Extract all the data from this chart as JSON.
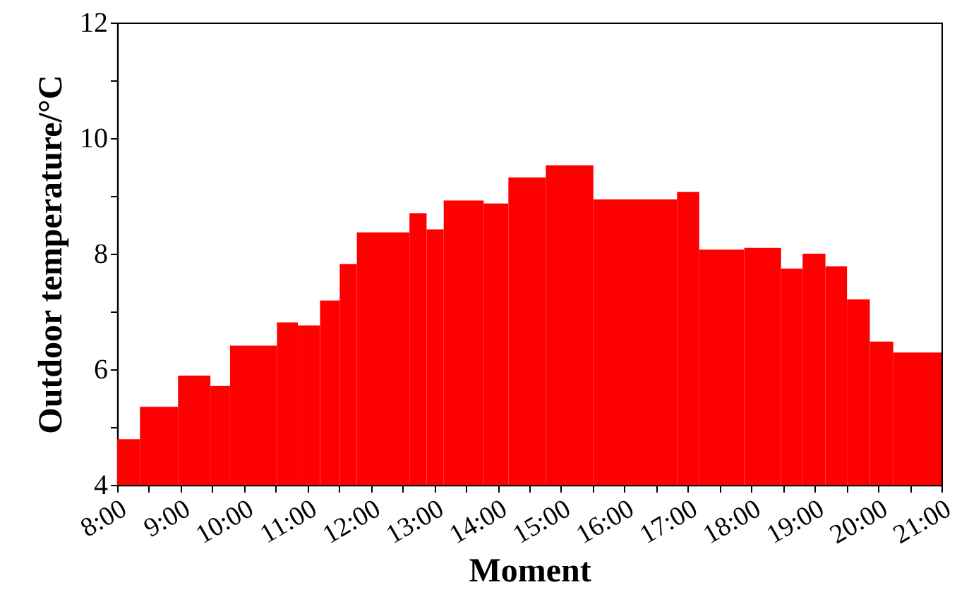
{
  "chart_data": {
    "type": "histogram",
    "xlabel": "Moment",
    "ylabel": "Outdoor temperature/°C",
    "bins": [
      8.0,
      8.36,
      8.96,
      9.47,
      9.78,
      10.52,
      10.85,
      11.2,
      11.51,
      11.78,
      12.61,
      12.88,
      13.15,
      13.78,
      14.17,
      14.76,
      15.51,
      16.83,
      17.18,
      17.89,
      18.47,
      18.81,
      19.17,
      19.51,
      19.87,
      20.24,
      21.0
    ],
    "values": [
      4.79,
      5.35,
      5.89,
      5.71,
      6.41,
      6.81,
      6.76,
      7.19,
      7.82,
      8.37,
      8.7,
      8.42,
      8.92,
      8.87,
      9.32,
      9.53,
      8.94,
      9.07,
      8.07,
      8.1,
      7.74,
      8.0,
      7.78,
      7.21,
      6.48,
      6.29
    ],
    "color": "#ff0000",
    "xlim": [
      8,
      21
    ],
    "xticks": [
      {
        "value": 8,
        "label": "8:00"
      },
      {
        "value": 8.5,
        "label": null
      },
      {
        "value": 9,
        "label": "9:00"
      },
      {
        "value": 9.5,
        "label": null
      },
      {
        "value": 10,
        "label": "10:00"
      },
      {
        "value": 10.5,
        "label": null
      },
      {
        "value": 11,
        "label": "11:00"
      },
      {
        "value": 11.5,
        "label": null
      },
      {
        "value": 12,
        "label": "12:00"
      },
      {
        "value": 12.5,
        "label": null
      },
      {
        "value": 13,
        "label": "13:00"
      },
      {
        "value": 13.5,
        "label": null
      },
      {
        "value": 14,
        "label": "14:00"
      },
      {
        "value": 14.5,
        "label": null
      },
      {
        "value": 15,
        "label": "15:00"
      },
      {
        "value": 15.5,
        "label": null
      },
      {
        "value": 16,
        "label": "16:00"
      },
      {
        "value": 16.5,
        "label": null
      },
      {
        "value": 17,
        "label": "17:00"
      },
      {
        "value": 17.5,
        "label": null
      },
      {
        "value": 18,
        "label": "18:00"
      },
      {
        "value": 18.5,
        "label": null
      },
      {
        "value": 19,
        "label": "19:00"
      },
      {
        "value": 19.5,
        "label": null
      },
      {
        "value": 20,
        "label": "20:00"
      },
      {
        "value": 20.5,
        "label": null
      },
      {
        "value": 21,
        "label": "21:00"
      }
    ],
    "ylim": [
      4,
      12
    ],
    "yticks": [
      4,
      {
        "value": 5,
        "label": null
      },
      6,
      {
        "value": 7,
        "label": null
      },
      8,
      {
        "value": 9,
        "label": null
      },
      10,
      {
        "value": 11,
        "label": null
      },
      12
    ],
    "grid": false
  }
}
